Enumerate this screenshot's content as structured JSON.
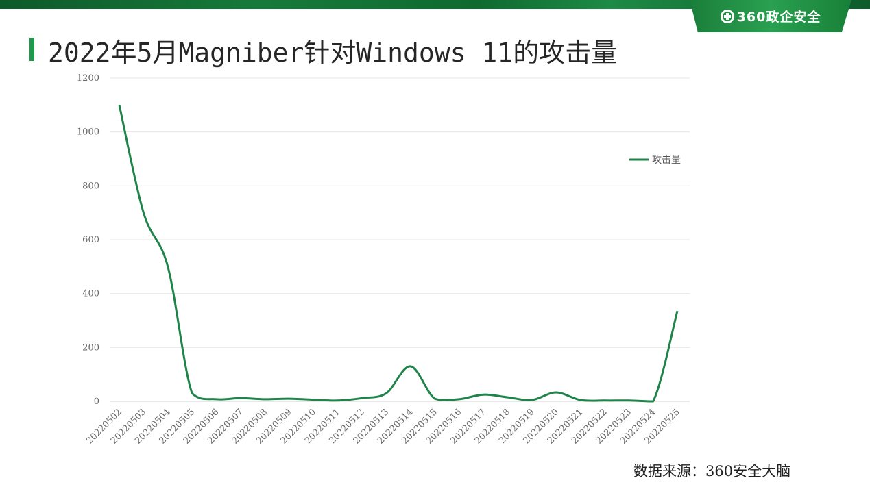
{
  "header": {
    "logo_text": "360政企安全",
    "logo_icon": "plus-circle-icon",
    "title": "2022年5月Magniber针对Windows 11的攻击量"
  },
  "footer": {
    "source": "数据来源：360安全大脑"
  },
  "colors": {
    "brand": "#1a7e3a",
    "series": "#1e8449"
  },
  "chart_data": {
    "type": "line",
    "title": "",
    "xlabel": "",
    "ylabel": "",
    "ylim": [
      0,
      1200
    ],
    "yticks": [
      0,
      200,
      400,
      600,
      800,
      1000,
      1200
    ],
    "grid": true,
    "legend": "right",
    "categories": [
      "20220502",
      "20220503",
      "20220504",
      "20220505",
      "20220506",
      "20220507",
      "20220508",
      "20220509",
      "20220510",
      "20220511",
      "20220512",
      "20220513",
      "20220514",
      "20220515",
      "20220516",
      "20220517",
      "20220518",
      "20220519",
      "20220520",
      "20220521",
      "20220522",
      "20220523",
      "20220524",
      "20220525"
    ],
    "series": [
      {
        "name": "攻击量",
        "values": [
          1100,
          700,
          500,
          30,
          8,
          12,
          8,
          10,
          6,
          3,
          12,
          30,
          130,
          10,
          8,
          25,
          15,
          5,
          33,
          5,
          3,
          3,
          0,
          335
        ]
      }
    ]
  }
}
